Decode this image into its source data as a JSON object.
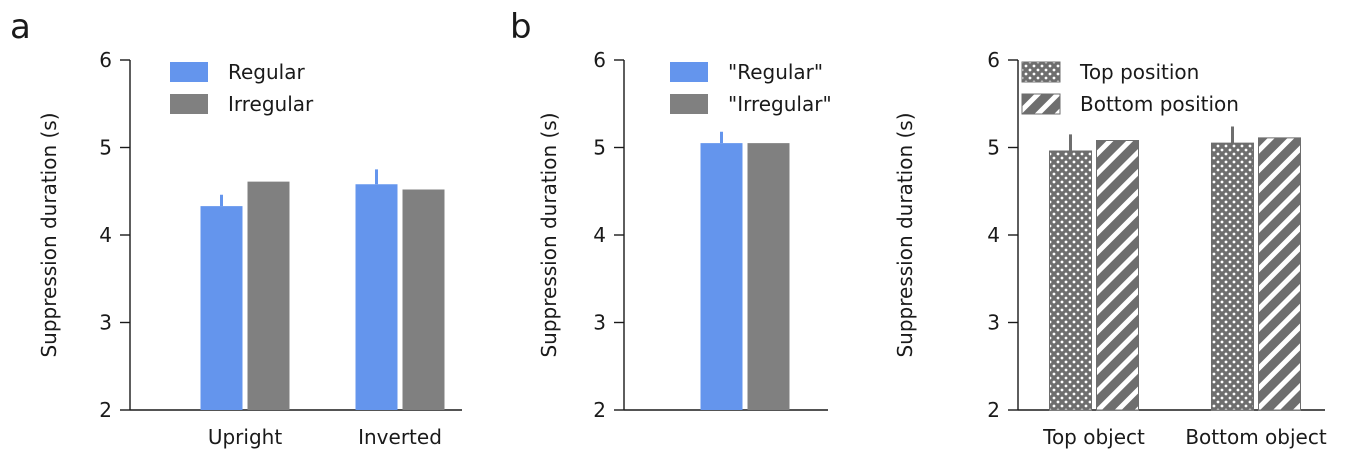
{
  "figure": {
    "panel_letters": [
      "a",
      "b"
    ]
  },
  "colors": {
    "regular": "#6495ED",
    "irregular": "#808080",
    "pattern_fill": "#6e6e6e",
    "axis": "#1a1a1a"
  },
  "chart_data": [
    {
      "type": "bar",
      "panel": "a",
      "ylabel": "Suppression duration (s)",
      "ylim": [
        2,
        6
      ],
      "yticks": [
        2,
        3,
        4,
        5,
        6
      ],
      "categories": [
        "Upright",
        "Inverted"
      ],
      "legend_position": "top-left",
      "series": [
        {
          "name": "Regular",
          "color_key": "regular",
          "pattern": "solid",
          "values": [
            4.33,
            4.58
          ],
          "errors": [
            0.13,
            0.17
          ]
        },
        {
          "name": "Irregular",
          "color_key": "irregular",
          "pattern": "solid",
          "values": [
            4.61,
            4.52
          ],
          "errors": [
            0,
            0
          ]
        }
      ]
    },
    {
      "type": "bar",
      "panel": "b",
      "ylabel": "Suppression duration (s)",
      "ylim": [
        2,
        6
      ],
      "yticks": [
        2,
        3,
        4,
        5,
        6
      ],
      "categories": [
        ""
      ],
      "legend_position": "top-left",
      "series": [
        {
          "name": "\"Regular\"",
          "color_key": "regular",
          "pattern": "solid",
          "values": [
            5.05
          ],
          "errors": [
            0.13
          ]
        },
        {
          "name": "\"Irregular\"",
          "color_key": "irregular",
          "pattern": "solid",
          "values": [
            5.05
          ],
          "errors": [
            0
          ]
        }
      ]
    },
    {
      "type": "bar",
      "panel": "b-right",
      "ylabel": "Suppression duration (s)",
      "ylim": [
        2,
        6
      ],
      "yticks": [
        2,
        3,
        4,
        5,
        6
      ],
      "categories": [
        "Top object",
        "Bottom object"
      ],
      "legend_position": "top-left",
      "series": [
        {
          "name": "Top position",
          "color_key": "pattern_fill",
          "pattern": "dots",
          "values": [
            4.96,
            5.05
          ],
          "errors": [
            0.19,
            0.19
          ]
        },
        {
          "name": "Bottom position",
          "color_key": "pattern_fill",
          "pattern": "stripes",
          "values": [
            5.08,
            5.11
          ],
          "errors": [
            0,
            0
          ]
        }
      ]
    }
  ]
}
